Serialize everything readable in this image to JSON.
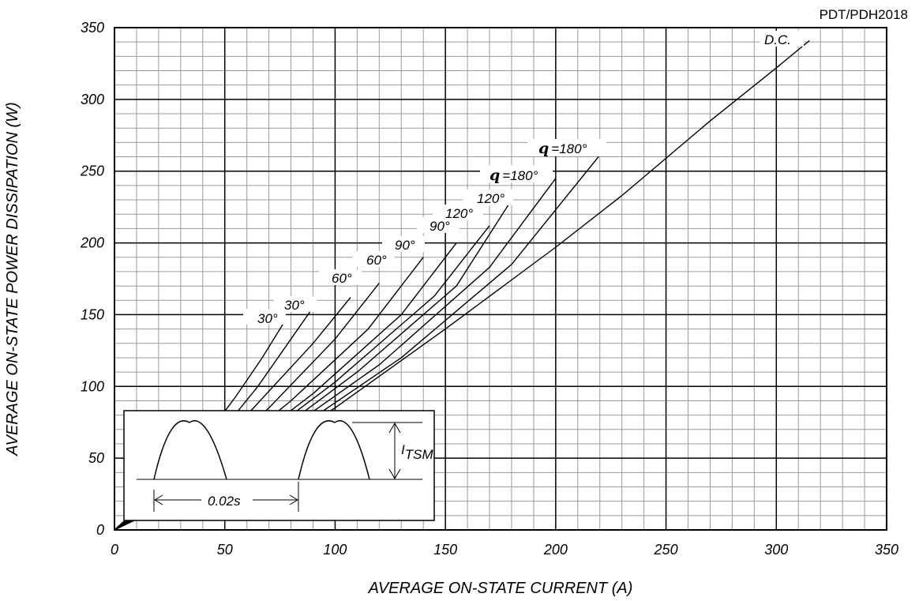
{
  "part_number": "PDT/PDH2018",
  "chart_data": {
    "type": "line",
    "xlabel": "AVERAGE ON-STATE CURRENT (A)",
    "ylabel": "AVERAGE ON-STATE POWER DISSIPATION (W)",
    "xlim": [
      0,
      350
    ],
    "ylim": [
      0,
      350
    ],
    "x_ticks": [
      0,
      50,
      100,
      150,
      200,
      250,
      300,
      350
    ],
    "y_ticks": [
      0,
      50,
      100,
      150,
      200,
      250,
      300,
      350
    ],
    "grid": true,
    "series": [
      {
        "name": "30°",
        "points": [
          [
            0,
            0
          ],
          [
            20,
            28
          ],
          [
            40,
            62
          ],
          [
            55,
            93
          ],
          [
            67,
            120
          ],
          [
            77,
            145
          ]
        ]
      },
      {
        "name": "30°",
        "points": [
          [
            0,
            0
          ],
          [
            25,
            32
          ],
          [
            45,
            62
          ],
          [
            65,
            100
          ],
          [
            80,
            133
          ],
          [
            90,
            155
          ]
        ]
      },
      {
        "name": "60°",
        "points": [
          [
            0,
            0
          ],
          [
            30,
            35
          ],
          [
            60,
            80
          ],
          [
            90,
            130
          ],
          [
            107,
            162
          ]
        ]
      },
      {
        "name": "60°",
        "points": [
          [
            0,
            0
          ],
          [
            35,
            38
          ],
          [
            70,
            85
          ],
          [
            100,
            133
          ],
          [
            120,
            172
          ]
        ]
      },
      {
        "name": "90°",
        "points": [
          [
            0,
            0
          ],
          [
            40,
            40
          ],
          [
            80,
            90
          ],
          [
            115,
            140
          ],
          [
            140,
            190
          ]
        ]
      },
      {
        "name": "90°",
        "points": [
          [
            0,
            0
          ],
          [
            45,
            42
          ],
          [
            90,
            95
          ],
          [
            130,
            150
          ],
          [
            155,
            200
          ]
        ]
      },
      {
        "name": "120°",
        "points": [
          [
            0,
            0
          ],
          [
            50,
            45
          ],
          [
            100,
            103
          ],
          [
            145,
            163
          ],
          [
            170,
            212
          ]
        ]
      },
      {
        "name": "120°",
        "points": [
          [
            0,
            0
          ],
          [
            55,
            47
          ],
          [
            110,
            110
          ],
          [
            155,
            170
          ],
          [
            180,
            230
          ]
        ]
      },
      {
        "name": "θ=180°",
        "points": [
          [
            0,
            0
          ],
          [
            60,
            50
          ],
          [
            120,
            115
          ],
          [
            170,
            183
          ],
          [
            200,
            245
          ]
        ]
      },
      {
        "name": "θ=180°",
        "points": [
          [
            0,
            0
          ],
          [
            65,
            52
          ],
          [
            130,
            120
          ],
          [
            180,
            185
          ],
          [
            222,
            265
          ]
        ]
      },
      {
        "name": "D.C.",
        "points": [
          [
            0,
            0
          ],
          [
            50,
            37
          ],
          [
            100,
            85
          ],
          [
            150,
            140
          ],
          [
            200,
            197
          ],
          [
            230,
            233
          ],
          [
            270,
            285
          ],
          [
            300,
            322
          ],
          [
            315,
            341
          ]
        ]
      }
    ],
    "annotations": [
      "30°",
      "30°",
      "60°",
      "60°",
      "90°",
      "90°",
      "120°",
      "120°",
      "θ=180°",
      "θ=180°",
      "D.C."
    ]
  },
  "curve_labels": {
    "l30a": "30°",
    "l30b": "30°",
    "l60a": "60°",
    "l60b": "60°",
    "l90a": "90°",
    "l90b": "90°",
    "l120a": "120°",
    "l120b": "120°",
    "theta_symbol": "q",
    "l180a": "=180°",
    "l180b": "=180°",
    "dc": "D.C."
  },
  "inset": {
    "period_label": "0.02s",
    "itsm_i": "I",
    "itsm_sub": "TSM"
  }
}
